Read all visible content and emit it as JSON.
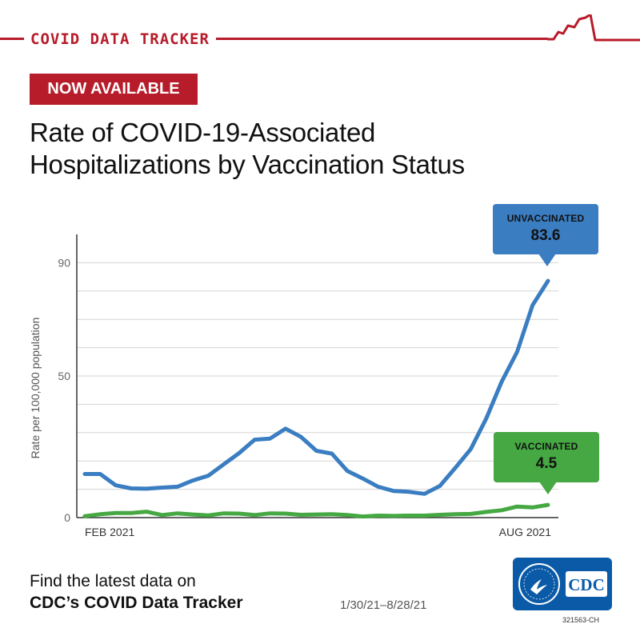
{
  "header": {
    "title": "COVID DATA TRACKER",
    "accent_color": "#b71c2a"
  },
  "badge": "NOW AVAILABLE",
  "title_lines": [
    "Rate of COVID-19-Associated",
    "Hospitalizations by Vaccination Status"
  ],
  "chart_data": {
    "type": "line",
    "ylabel": "Rate per 100,000 population",
    "ylim": [
      0,
      100
    ],
    "yticks": [
      0,
      50,
      90
    ],
    "grid": true,
    "x_tick_labels": [
      "FEB 2021",
      "AUG 2021"
    ],
    "series": [
      {
        "name": "UNVACCINATED",
        "color": "#3a7dc1",
        "values": [
          15.4,
          15.4,
          11.4,
          10.3,
          10.2,
          10.6,
          10.9,
          13.1,
          14.8,
          18.8,
          22.8,
          27.5,
          27.9,
          31.4,
          28.5,
          23.6,
          22.6,
          16.5,
          13.8,
          10.9,
          9.4,
          9.1,
          8.4,
          11.2,
          17.6,
          24.2,
          35.0,
          48.0,
          58.5,
          75.0,
          83.6
        ]
      },
      {
        "name": "VACCINATED",
        "color": "#45a842",
        "values": [
          0.5,
          1.2,
          1.6,
          1.6,
          2.1,
          0.9,
          1.5,
          1.1,
          0.8,
          1.5,
          1.4,
          0.9,
          1.5,
          1.4,
          1.0,
          1.1,
          1.2,
          0.9,
          0.4,
          0.7,
          0.6,
          0.7,
          0.7,
          1.0,
          1.2,
          1.3,
          2.0,
          2.6,
          3.9,
          3.6,
          4.5
        ]
      }
    ]
  },
  "callouts": {
    "unvaccinated": {
      "label": "UNVACCINATED",
      "value": "83.6"
    },
    "vaccinated": {
      "label": "VACCINATED",
      "value": "4.5"
    }
  },
  "footer": {
    "line1": "Find the latest data on",
    "line2": "CDC’s COVID Data Tracker",
    "date_range": "1/30/21–8/28/21",
    "code": "321563-CH"
  },
  "logo": {
    "text": "CDC"
  }
}
